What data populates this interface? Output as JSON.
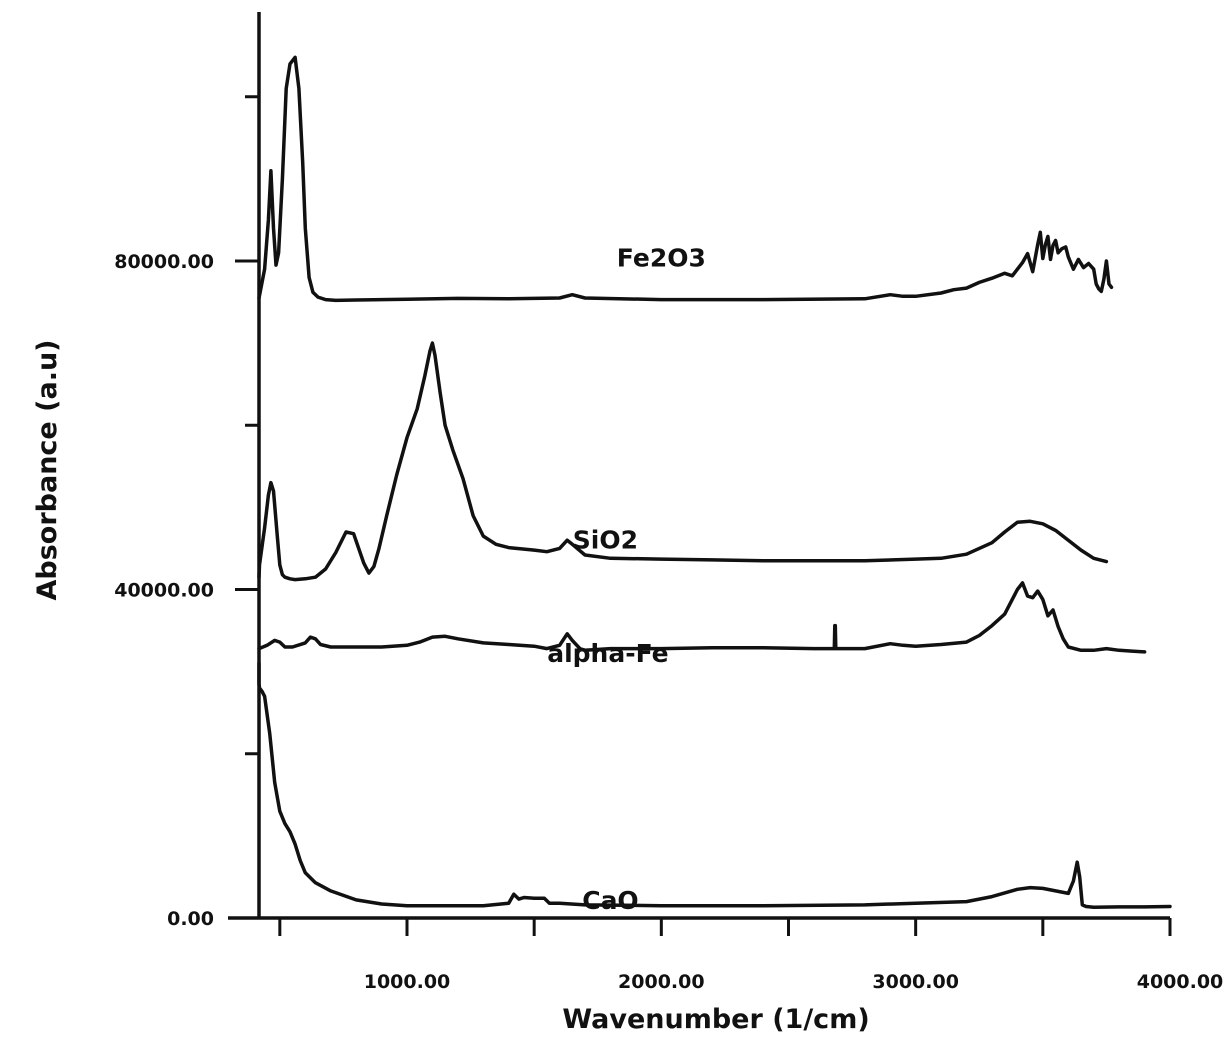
{
  "chart_data": {
    "type": "line",
    "title": "",
    "xlabel": "Wavenumber (1/cm)",
    "ylabel": "Absorbance (a.u)",
    "xlim": [
      400,
      4000
    ],
    "ylim": [
      0,
      100000
    ],
    "x_ticks": [
      1000,
      2000,
      3000,
      4000
    ],
    "x_tick_labels": [
      "1000.00",
      "2000.00",
      "3000.00",
      "4000.00"
    ],
    "x_minor_ticks": [
      500,
      1500,
      2500,
      3500
    ],
    "y_ticks": [
      0,
      40000,
      80000
    ],
    "y_tick_labels": [
      "0.00",
      "40000.00",
      "80000.00"
    ],
    "y_minor_ticks": [
      20000,
      60000,
      100000
    ],
    "grid": false,
    "legend": "none",
    "series": [
      {
        "name": "Fe2O3",
        "label_at": [
          2000,
          79300
        ],
        "x": [
          400,
          420,
          440,
          455,
          465,
          475,
          485,
          495,
          510,
          525,
          540,
          560,
          575,
          590,
          600,
          615,
          630,
          650,
          680,
          720,
          800,
          1000,
          1200,
          1400,
          1600,
          1650,
          1700,
          2000,
          2400,
          2800,
          2900,
          2950,
          3000,
          3100,
          3150,
          3200,
          3250,
          3300,
          3350,
          3380,
          3400,
          3420,
          3440,
          3460,
          3480,
          3490,
          3500,
          3510,
          3520,
          3530,
          3540,
          3550,
          3560,
          3575,
          3590,
          3600,
          3620,
          3640,
          3660,
          3680,
          3700,
          3710,
          3720,
          3730,
          3740,
          3750,
          3760,
          3770
        ],
        "y": [
          75500,
          75800,
          79000,
          85000,
          91000,
          84000,
          79500,
          81000,
          90000,
          101000,
          104000,
          104800,
          101000,
          92000,
          84000,
          78000,
          76200,
          75600,
          75300,
          75200,
          75250,
          75350,
          75450,
          75400,
          75500,
          75900,
          75500,
          75300,
          75300,
          75400,
          75900,
          75700,
          75700,
          76100,
          76500,
          76700,
          77400,
          77900,
          78500,
          78200,
          79000,
          79800,
          80900,
          78700,
          82000,
          83500,
          80300,
          82000,
          83000,
          80200,
          81900,
          82500,
          81000,
          81500,
          81700,
          80500,
          79000,
          80200,
          79200,
          79700,
          79000,
          77200,
          76600,
          76300,
          77800,
          80000,
          77200,
          76800
        ]
      },
      {
        "name": "SiO2",
        "label_at": [
          1780,
          45000
        ],
        "x": [
          400,
          420,
          440,
          455,
          465,
          475,
          490,
          500,
          510,
          520,
          540,
          560,
          600,
          640,
          680,
          720,
          760,
          790,
          810,
          830,
          850,
          870,
          890,
          920,
          960,
          1000,
          1040,
          1070,
          1090,
          1100,
          1110,
          1130,
          1150,
          1180,
          1220,
          1260,
          1300,
          1350,
          1400,
          1500,
          1550,
          1600,
          1630,
          1650,
          1700,
          1800,
          2000,
          2200,
          2400,
          2600,
          2800,
          3000,
          3100,
          3200,
          3300,
          3350,
          3400,
          3450,
          3500,
          3550,
          3600,
          3650,
          3700,
          3750
        ],
        "y": [
          41500,
          43000,
          47500,
          51500,
          53000,
          52000,
          46500,
          43000,
          41800,
          41500,
          41300,
          41200,
          41300,
          41500,
          42500,
          44500,
          47000,
          46800,
          45000,
          43200,
          42000,
          42800,
          45000,
          49000,
          54000,
          58500,
          62000,
          66000,
          69000,
          70000,
          68500,
          64000,
          60000,
          57000,
          53500,
          49000,
          46500,
          45500,
          45100,
          44800,
          44600,
          45000,
          46000,
          45500,
          44200,
          43800,
          43700,
          43600,
          43500,
          43500,
          43500,
          43700,
          43800,
          44300,
          45700,
          47000,
          48200,
          48300,
          48000,
          47200,
          46000,
          44800,
          43800,
          43400
        ]
      },
      {
        "name": "alpha-Fe",
        "label_at": [
          1790,
          31200
        ],
        "x": [
          400,
          450,
          480,
          500,
          520,
          550,
          600,
          620,
          640,
          660,
          700,
          800,
          900,
          1000,
          1050,
          1100,
          1150,
          1200,
          1300,
          1400,
          1500,
          1550,
          1600,
          1630,
          1650,
          1680,
          1700,
          1800,
          2000,
          2200,
          2400,
          2600,
          2680,
          2682,
          2684,
          2686,
          2700,
          2800,
          2900,
          2950,
          3000,
          3100,
          3200,
          3250,
          3300,
          3350,
          3400,
          3420,
          3440,
          3460,
          3480,
          3500,
          3520,
          3540,
          3560,
          3580,
          3600,
          3650,
          3700,
          3750,
          3800,
          3850,
          3900
        ],
        "y": [
          32800,
          33200,
          33800,
          33600,
          33000,
          33000,
          33500,
          34200,
          34000,
          33300,
          33000,
          33000,
          33000,
          33200,
          33600,
          34200,
          34300,
          34000,
          33500,
          33300,
          33100,
          32800,
          33200,
          34600,
          33800,
          32800,
          32600,
          32800,
          32800,
          32900,
          32900,
          32800,
          32800,
          35600,
          35600,
          32800,
          32800,
          32800,
          33400,
          33200,
          33100,
          33300,
          33600,
          34400,
          35600,
          37000,
          40000,
          40800,
          39200,
          39000,
          39800,
          38800,
          36800,
          37500,
          35500,
          34000,
          33000,
          32600,
          32600,
          32800,
          32600,
          32500,
          32400
        ]
      },
      {
        "name": "CaO",
        "label_at": [
          1800,
          1100
        ],
        "x": [
          400,
          410,
          420,
          430,
          440,
          460,
          480,
          500,
          520,
          540,
          560,
          580,
          600,
          640,
          700,
          800,
          900,
          1000,
          1200,
          1300,
          1400,
          1420,
          1440,
          1460,
          1500,
          1540,
          1560,
          1600,
          1700,
          2000,
          2400,
          2800,
          3000,
          3200,
          3300,
          3400,
          3450,
          3500,
          3550,
          3600,
          3620,
          3635,
          3645,
          3655,
          3670,
          3700,
          3800,
          3900,
          4000
        ],
        "y": [
          31000,
          28500,
          28000,
          27600,
          27000,
          22500,
          16500,
          13000,
          11500,
          10500,
          9000,
          7000,
          5500,
          4300,
          3300,
          2200,
          1700,
          1500,
          1500,
          1500,
          1800,
          2900,
          2300,
          2500,
          2400,
          2400,
          1800,
          1800,
          1600,
          1500,
          1500,
          1600,
          1800,
          2000,
          2600,
          3500,
          3700,
          3600,
          3300,
          3000,
          4500,
          6800,
          5000,
          1600,
          1400,
          1300,
          1350,
          1350,
          1400
        ]
      }
    ]
  }
}
